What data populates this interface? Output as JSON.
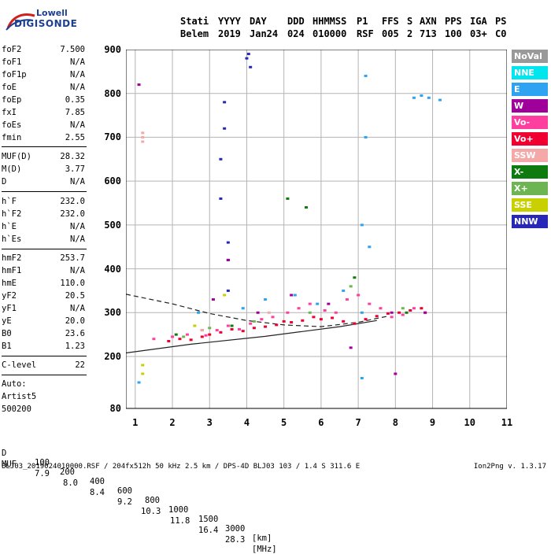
{
  "logo": {
    "line1": "Lowell",
    "line2": "DIGISONDE"
  },
  "header": {
    "labels": [
      "Stati",
      "YYYY",
      "DAY",
      "DDD",
      "HHMMSS",
      "P1",
      "FFS",
      "S",
      "AXN",
      "PPS",
      "IGA",
      "PS"
    ],
    "values": [
      "Belem",
      "2019",
      "Jan24",
      "024",
      "010000",
      "RSF",
      "005",
      "2",
      "713",
      "100",
      "03+",
      "C0"
    ]
  },
  "parameters": [
    {
      "name": "foF2",
      "value": "7.500"
    },
    {
      "name": "foF1",
      "value": "N/A"
    },
    {
      "name": "foF1p",
      "value": "N/A"
    },
    {
      "name": "foE",
      "value": "N/A"
    },
    {
      "name": "foEp",
      "value": "0.35"
    },
    {
      "name": "fxI",
      "value": "7.85"
    },
    {
      "name": "foEs",
      "value": "N/A"
    },
    {
      "name": "fmin",
      "value": "2.55"
    },
    {
      "name": "MUF(D)",
      "value": "28.32"
    },
    {
      "name": "M(D)",
      "value": "3.77"
    },
    {
      "name": "D",
      "value": "N/A"
    },
    {
      "name": "h`F",
      "value": "232.0"
    },
    {
      "name": "h`F2",
      "value": "232.0"
    },
    {
      "name": "h`E",
      "value": "N/A"
    },
    {
      "name": "h`Es",
      "value": "N/A"
    },
    {
      "name": "hmF2",
      "value": "253.7"
    },
    {
      "name": "hmF1",
      "value": "N/A"
    },
    {
      "name": "hmE",
      "value": "110.0"
    },
    {
      "name": "yF2",
      "value": "20.5"
    },
    {
      "name": "yF1",
      "value": "N/A"
    },
    {
      "name": "yE",
      "value": "20.0"
    },
    {
      "name": "B0",
      "value": "23.6"
    },
    {
      "name": "B1",
      "value": "1.23"
    },
    {
      "name": "C-level",
      "value": "22"
    }
  ],
  "autoscaling": [
    "Auto:",
    "Artist5",
    "500200"
  ],
  "legend": [
    {
      "label": "NoVal",
      "color": "#999999"
    },
    {
      "label": "NNE",
      "color": "#00e5ee"
    },
    {
      "label": "E",
      "color": "#2ea3f2"
    },
    {
      "label": "W",
      "color": "#a0009a"
    },
    {
      "label": "Vo-",
      "color": "#ff3fa0"
    },
    {
      "label": "Vo+",
      "color": "#ef0030"
    },
    {
      "label": "SSW",
      "color": "#f4a8a8"
    },
    {
      "label": "X-",
      "color": "#0f7a0f"
    },
    {
      "label": "X+",
      "color": "#6cb552"
    },
    {
      "label": "SSE",
      "color": "#c8d000"
    },
    {
      "label": "NNW",
      "color": "#2828b8"
    }
  ],
  "footer": {
    "d_label": "D",
    "d_values": [
      "100",
      "200",
      "400",
      "600",
      "800",
      "1000",
      "1500",
      "3000"
    ],
    "d_unit": "[km]",
    "muf_label": "MUF",
    "muf_values": [
      "7.9",
      "8.0",
      "8.4",
      "9.2",
      "10.3",
      "11.8",
      "16.4",
      "28.3"
    ],
    "muf_unit": "[MHz]",
    "file_info": "BLJ03_2019024010000.RSF / 204fx512h 50 kHz 2.5 km / DPS-4D BLJ03 103 / 1.4 S 311.6 E",
    "version": "Ion2Png v. 1.3.17"
  },
  "chart_data": {
    "type": "scatter",
    "xlabel": "",
    "ylabel": "",
    "xlim": [
      0.75,
      11
    ],
    "ylim": [
      80,
      900
    ],
    "x_ticks": [
      1,
      2,
      3,
      4,
      5,
      6,
      7,
      8,
      9,
      10,
      11
    ],
    "y_ticks": [
      80,
      200,
      300,
      400,
      500,
      600,
      700,
      800,
      900
    ],
    "grid": true,
    "legend_position": "right",
    "series": [
      {
        "name": "Vo+",
        "color": "#ef0030",
        "x": [
          1.9,
          2.2,
          2.5,
          2.8,
          3.0,
          3.3,
          3.6,
          3.9,
          4.2,
          4.5,
          4.8,
          5.0,
          5.2,
          5.5,
          5.8,
          6.0,
          6.3,
          6.6,
          6.9,
          7.2,
          7.5,
          7.8,
          8.1,
          8.4,
          8.7
        ],
        "y": [
          235,
          240,
          238,
          245,
          250,
          255,
          262,
          258,
          265,
          268,
          272,
          280,
          278,
          282,
          290,
          285,
          288,
          280,
          275,
          285,
          292,
          298,
          300,
          305,
          310
        ]
      },
      {
        "name": "Vo-",
        "color": "#ff3fa0",
        "x": [
          1.5,
          2.0,
          2.4,
          2.9,
          3.2,
          3.5,
          3.8,
          4.1,
          4.4,
          4.7,
          5.1,
          5.4,
          5.7,
          6.1,
          6.4,
          6.7,
          7.0,
          7.3,
          7.6,
          7.9,
          8.2,
          8.5,
          8.8
        ],
        "y": [
          240,
          245,
          250,
          248,
          260,
          270,
          262,
          275,
          285,
          290,
          300,
          310,
          320,
          305,
          300,
          330,
          340,
          320,
          310,
          290,
          295,
          310,
          300
        ]
      },
      {
        "name": "E",
        "color": "#2ea3f2",
        "x": [
          1.1,
          2.7,
          3.9,
          4.5,
          5.3,
          5.9,
          6.6,
          7.1,
          7.1,
          7.1,
          7.2,
          7.2,
          7.3,
          8.5,
          8.7,
          8.9,
          9.2
        ],
        "y": [
          140,
          300,
          310,
          330,
          340,
          320,
          350,
          150,
          300,
          500,
          700,
          840,
          450,
          790,
          795,
          790,
          785
        ]
      },
      {
        "name": "NNW",
        "color": "#2828b8",
        "x": [
          3.3,
          3.3,
          3.4,
          3.4,
          3.5,
          3.5,
          4.0,
          4.05,
          4.1,
          3.5
        ],
        "y": [
          560,
          650,
          720,
          780,
          420,
          350,
          880,
          890,
          860,
          460
        ]
      },
      {
        "name": "W",
        "color": "#a0009a",
        "x": [
          3.1,
          3.5,
          4.3,
          5.2,
          6.2,
          6.8,
          7.9,
          8.0,
          8.8,
          1.1
        ],
        "y": [
          330,
          420,
          300,
          340,
          320,
          220,
          300,
          160,
          300,
          820
        ]
      },
      {
        "name": "X-",
        "color": "#0f7a0f",
        "x": [
          2.1,
          2.8,
          3.6,
          5.1,
          5.6,
          6.9,
          8.3
        ],
        "y": [
          250,
          260,
          270,
          560,
          540,
          380,
          300
        ]
      },
      {
        "name": "X+",
        "color": "#6cb552",
        "x": [
          2.3,
          3.0,
          4.2,
          5.7,
          6.8,
          8.2
        ],
        "y": [
          245,
          265,
          280,
          300,
          360,
          310
        ]
      },
      {
        "name": "SSE",
        "color": "#c8d000",
        "x": [
          1.2,
          1.2,
          2.6,
          3.4
        ],
        "y": [
          160,
          180,
          270,
          340
        ]
      },
      {
        "name": "SSW",
        "color": "#f4a8a8",
        "x": [
          1.2,
          1.2,
          1.2,
          2.8,
          4.6
        ],
        "y": [
          690,
          700,
          710,
          260,
          300
        ]
      }
    ],
    "curves": [
      {
        "style": "solid",
        "x": [
          0.75,
          2.5,
          4.5,
          6.5,
          7.5
        ],
        "y": [
          208,
          228,
          246,
          268,
          282
        ]
      },
      {
        "style": "dashed",
        "x": [
          0.75,
          2.0,
          3.0,
          4.0,
          5.0,
          6.0,
          7.0,
          7.8
        ],
        "y": [
          342,
          320,
          298,
          282,
          272,
          268,
          278,
          292
        ]
      }
    ]
  }
}
